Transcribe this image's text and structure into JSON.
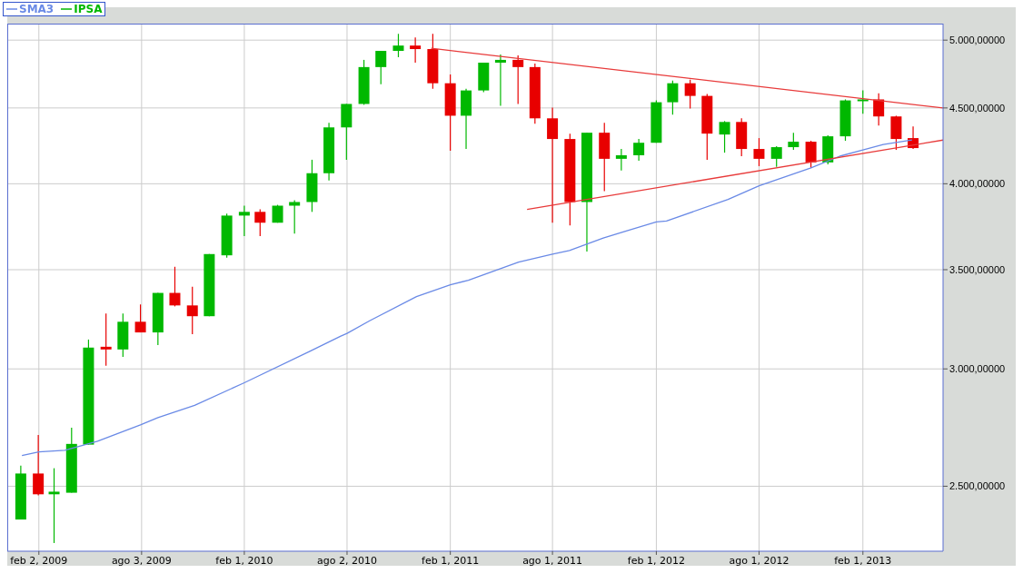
{
  "chart_data": {
    "type": "candlestick",
    "log": "y",
    "grid": true,
    "legend": "top left",
    "ylim": [
      2260,
      5130
    ],
    "yticks": [
      {
        "value": 2500,
        "label": "2.500,00000"
      },
      {
        "value": 3000,
        "label": "3.000,00000"
      },
      {
        "value": 3500,
        "label": "3.500,00000"
      },
      {
        "value": 4000,
        "label": "4.000,00000"
      },
      {
        "value": 4500,
        "label": "4.500,00000"
      },
      {
        "value": 5000,
        "label": "5.000,00000"
      }
    ],
    "xlim": [
      "2008-12-08",
      "2013-06-23"
    ],
    "xticks": [
      {
        "value": "2009-02-02",
        "label": "feb 2, 2009"
      },
      {
        "value": "2009-08-03",
        "label": "ago 3, 2009"
      },
      {
        "value": "2010-02-01",
        "label": "feb 1, 2010"
      },
      {
        "value": "2010-08-02",
        "label": "ago 2, 2010"
      },
      {
        "value": "2011-02-01",
        "label": "feb 1, 2011"
      },
      {
        "value": "2011-08-01",
        "label": "ago 1, 2011"
      },
      {
        "value": "2012-02-01",
        "label": "feb 1, 2012"
      },
      {
        "value": "2012-08-01",
        "label": "ago 1, 2012"
      },
      {
        "value": "2013-02-01",
        "label": "feb 1, 2013"
      }
    ],
    "series": [
      {
        "name": "SMA3",
        "type": "line",
        "color": "#6a8ae6",
        "x": [
          "2009-01-03",
          "2009-02-02",
          "2009-03-20",
          "2009-05-17",
          "2009-08-01",
          "2009-09-01",
          "2009-11-05",
          "2010-02-01",
          "2010-05-28",
          "2010-07-22",
          "2010-08-02",
          "2010-09-11",
          "2010-12-03",
          "2011-02-01",
          "2011-03-05",
          "2011-06-02",
          "2011-08-01",
          "2011-08-31",
          "2011-10-30",
          "2012-02-01",
          "2012-02-19",
          "2012-06-07",
          "2012-08-01",
          "2012-11-01",
          "2012-12-22",
          "2013-02-01",
          "2013-03-09",
          "2013-04-29"
        ],
        "values": [
          2622,
          2637,
          2644,
          2681,
          2750,
          2781,
          2835,
          2936,
          3083,
          3157,
          3170,
          3233,
          3357,
          3419,
          3443,
          3541,
          3586,
          3606,
          3677,
          3770,
          3775,
          3904,
          3987,
          4100,
          4175,
          4216,
          4252,
          4281
        ]
      },
      {
        "type": "line",
        "color": "#e83a3a",
        "x": [
          "2010-12-29",
          "2013-06-23"
        ],
        "values": [
          4937,
          4500
        ]
      },
      {
        "type": "line",
        "color": "#e83a3a",
        "x": [
          "2011-06-17",
          "2013-06-23"
        ],
        "values": [
          3844,
          4281
        ]
      },
      {
        "name": "IPSA",
        "type": "candlestick",
        "color": "#00b800",
        "x": [
          "2009-01",
          "2009-02",
          "2009-03",
          "2009-04",
          "2009-05",
          "2009-06",
          "2009-07",
          "2009-08",
          "2009-09",
          "2009-10",
          "2009-11",
          "2009-12",
          "2010-01",
          "2010-02",
          "2010-03",
          "2010-04",
          "2010-05",
          "2010-06",
          "2010-07",
          "2010-08",
          "2010-09",
          "2010-10",
          "2010-11",
          "2010-12",
          "2011-01",
          "2011-02",
          "2011-03",
          "2011-04",
          "2011-05",
          "2011-06",
          "2011-07",
          "2011-08",
          "2011-09",
          "2011-10",
          "2011-11",
          "2011-12",
          "2012-01",
          "2012-02",
          "2012-03",
          "2012-04",
          "2012-05",
          "2012-06",
          "2012-07",
          "2012-08",
          "2012-09",
          "2012-10",
          "2012-11",
          "2012-12",
          "2013-01",
          "2013-02",
          "2013-03",
          "2013-04",
          "2013-05"
        ],
        "colors": [
          "#00b800",
          "#e80000",
          "#00b800",
          "#00b800",
          "#00b800",
          "#e80000",
          "#00b800",
          "#e80000",
          "#00b800",
          "#e80000",
          "#e80000",
          "#00b800",
          "#00b800",
          "#00b800",
          "#e80000",
          "#00b800",
          "#00b800",
          "#00b800",
          "#00b800",
          "#00b800",
          "#00b800",
          "#00b800",
          "#00b800",
          "#e80000",
          "#e80000",
          "#e80000",
          "#00b800",
          "#00b800",
          "#00b800",
          "#e80000",
          "#e80000",
          "#e80000",
          "#e80000",
          "#00b800",
          "#e80000",
          "#00b800",
          "#00b800",
          "#00b800",
          "#00b800",
          "#e80000",
          "#e80000",
          "#00b800",
          "#e80000",
          "#e80000",
          "#00b800",
          "#00b800",
          "#e80000",
          "#00b800",
          "#00b800",
          "#00b800",
          "#e80000",
          "#e80000",
          "#e80000"
        ],
        "ohlc": [
          [
            2374,
            2581,
            2374,
            2550
          ],
          [
            2550,
            2707,
            2465,
            2469
          ],
          [
            2469,
            2571,
            2289,
            2479
          ],
          [
            2475,
            2738,
            2475,
            2670
          ],
          [
            2667,
            3140,
            2667,
            3101
          ],
          [
            3105,
            3270,
            3015,
            3092
          ],
          [
            3092,
            3270,
            3057,
            3228
          ],
          [
            3228,
            3316,
            3175,
            3175
          ],
          [
            3175,
            3376,
            3113,
            3376
          ],
          [
            3376,
            3516,
            3306,
            3311
          ],
          [
            3311,
            3409,
            3166,
            3256
          ],
          [
            3256,
            3586,
            3256,
            3586
          ],
          [
            3579,
            3818,
            3566,
            3807
          ],
          [
            3807,
            3866,
            3687,
            3829
          ],
          [
            3829,
            3844,
            3687,
            3765
          ],
          [
            3765,
            3871,
            3765,
            3866
          ],
          [
            3866,
            3899,
            3702,
            3888
          ],
          [
            3888,
            4152,
            3829,
            4066
          ],
          [
            4066,
            4397,
            4021,
            4366
          ],
          [
            4366,
            4528,
            4152,
            4528
          ],
          [
            4528,
            4849,
            4522,
            4795
          ],
          [
            4795,
            4917,
            4669,
            4917
          ],
          [
            4917,
            5049,
            4869,
            4958
          ],
          [
            4958,
            5021,
            4828,
            4931
          ],
          [
            4931,
            5049,
            4636,
            4676
          ],
          [
            4676,
            4741,
            4210,
            4446
          ],
          [
            4446,
            4636,
            4222,
            4624
          ],
          [
            4624,
            4828,
            4611,
            4828
          ],
          [
            4828,
            4889,
            4515,
            4849
          ],
          [
            4849,
            4882,
            4528,
            4795
          ],
          [
            4795,
            4821,
            4391,
            4428
          ],
          [
            4428,
            4502,
            3765,
            4288
          ],
          [
            4288,
            4324,
            3749,
            3888
          ],
          [
            3888,
            4330,
            3600,
            4330
          ],
          [
            4330,
            4397,
            3954,
            4158
          ],
          [
            4158,
            4222,
            4083,
            4181
          ],
          [
            4181,
            4288,
            4146,
            4263
          ],
          [
            4263,
            4553,
            4263,
            4540
          ],
          [
            4540,
            4695,
            4453,
            4676
          ],
          [
            4676,
            4702,
            4496,
            4585
          ],
          [
            4585,
            4599,
            4152,
            4324
          ],
          [
            4318,
            4409,
            4198,
            4403
          ],
          [
            4403,
            4428,
            4175,
            4222
          ],
          [
            4222,
            4294,
            4111,
            4158
          ],
          [
            4158,
            4240,
            4106,
            4234
          ],
          [
            4234,
            4330,
            4216,
            4270
          ],
          [
            4270,
            4276,
            4100,
            4135
          ],
          [
            4135,
            4312,
            4123,
            4306
          ],
          [
            4306,
            4560,
            4276,
            4553
          ],
          [
            4553,
            4624,
            4460,
            4560
          ],
          [
            4560,
            4604,
            4378,
            4441
          ],
          [
            4441,
            4446,
            4216,
            4288
          ],
          [
            4294,
            4372,
            4222,
            4228
          ]
        ]
      }
    ]
  }
}
